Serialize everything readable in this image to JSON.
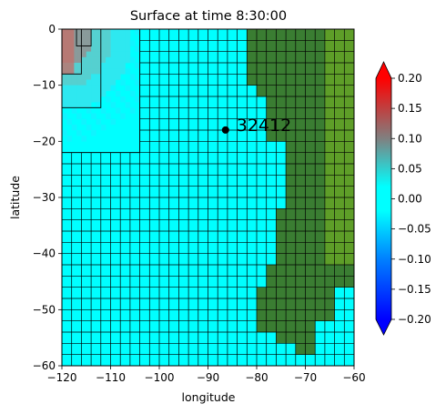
{
  "chart_data": {
    "type": "heatmap",
    "title": "Surface at time 8:30:00",
    "xlabel": "longitude",
    "ylabel": "latitude",
    "xlim": [
      -120,
      -60
    ],
    "ylim": [
      -60,
      0
    ],
    "xticks": [
      -120,
      -110,
      -100,
      -90,
      -80,
      -70,
      -60
    ],
    "yticks": [
      0,
      -10,
      -20,
      -30,
      -40,
      -50,
      -60
    ],
    "xtick_labels": [
      "−120",
      "−110",
      "−100",
      "−90",
      "−80",
      "−70",
      "−60"
    ],
    "ytick_labels": [
      "0",
      "−10",
      "−20",
      "−30",
      "−40",
      "−50",
      "−60"
    ],
    "grid_resolution_deg": 2,
    "refined_patches": [
      {
        "level": 2,
        "lon": [
          -120,
          -104
        ],
        "lat": [
          -22,
          0
        ],
        "cell_deg": 1
      },
      {
        "level": 3,
        "lon": [
          -120,
          -112
        ],
        "lat": [
          -14,
          0
        ],
        "cell_deg": 0.5
      },
      {
        "level": 4,
        "lon": [
          -120,
          -116
        ],
        "lat": [
          -8,
          0
        ],
        "cell_deg": 0.25
      },
      {
        "level": 5,
        "lon": [
          -117,
          -114
        ],
        "lat": [
          -3,
          0
        ],
        "cell_deg": 0.25
      }
    ],
    "gauge": {
      "label": "32412",
      "lon": -86.4,
      "lat": -17.98
    },
    "surface_level_range": [
      -0.02,
      0.13
    ],
    "land_color": "#3a7d32",
    "high_land_color": "#5e9e28",
    "colorbar": {
      "min": -0.2,
      "max": 0.2,
      "ticks": [
        0.2,
        0.15,
        0.1,
        0.05,
        0.0,
        -0.05,
        -0.1,
        -0.15,
        -0.2
      ],
      "tick_labels": [
        "0.20",
        "0.15",
        "0.10",
        "0.05",
        "0.00",
        "−0.05",
        "−0.10",
        "−0.15",
        "−0.20"
      ],
      "colors": [
        "#0000ff",
        "#00ffff",
        "#00ffff",
        "#ff0000"
      ],
      "extend": "both"
    }
  }
}
